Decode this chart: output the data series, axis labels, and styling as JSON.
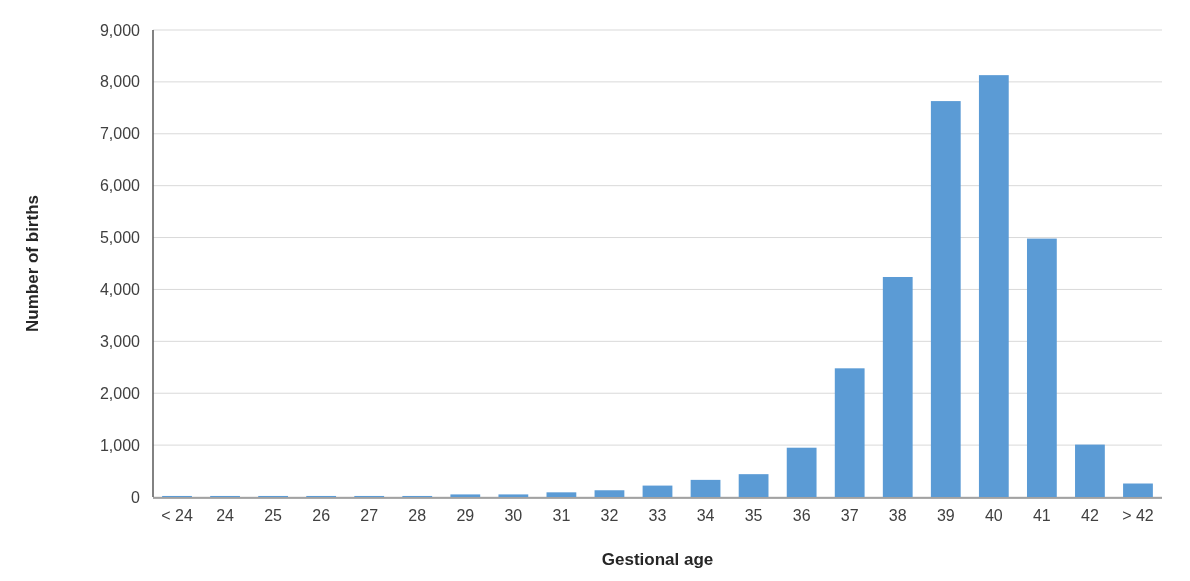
{
  "chart_data": {
    "type": "bar",
    "xlabel": "Gestional age",
    "ylabel": "Number of births",
    "categories": [
      "< 24",
      "24",
      "25",
      "26",
      "27",
      "28",
      "29",
      "30",
      "31",
      "32",
      "33",
      "34",
      "35",
      "36",
      "37",
      "38",
      "39",
      "40",
      "41",
      "42",
      "> 42"
    ],
    "values": [
      20,
      20,
      20,
      20,
      20,
      20,
      50,
      50,
      90,
      130,
      220,
      330,
      440,
      950,
      2480,
      4240,
      7630,
      8130,
      4980,
      1010,
      260
    ],
    "color": "#5b9bd5",
    "ylim": [
      0,
      9000
    ],
    "yticks": [
      {
        "value": 0,
        "label": "0"
      },
      {
        "value": 1000,
        "label": "1,000"
      },
      {
        "value": 2000,
        "label": "2,000"
      },
      {
        "value": 3000,
        "label": "3,000"
      },
      {
        "value": 4000,
        "label": "4,000"
      },
      {
        "value": 5000,
        "label": "5,000"
      },
      {
        "value": 6000,
        "label": "6,000"
      },
      {
        "value": 7000,
        "label": "7,000"
      },
      {
        "value": 8000,
        "label": "8,000"
      },
      {
        "value": 9000,
        "label": "9,000"
      }
    ],
    "grid": "y"
  }
}
